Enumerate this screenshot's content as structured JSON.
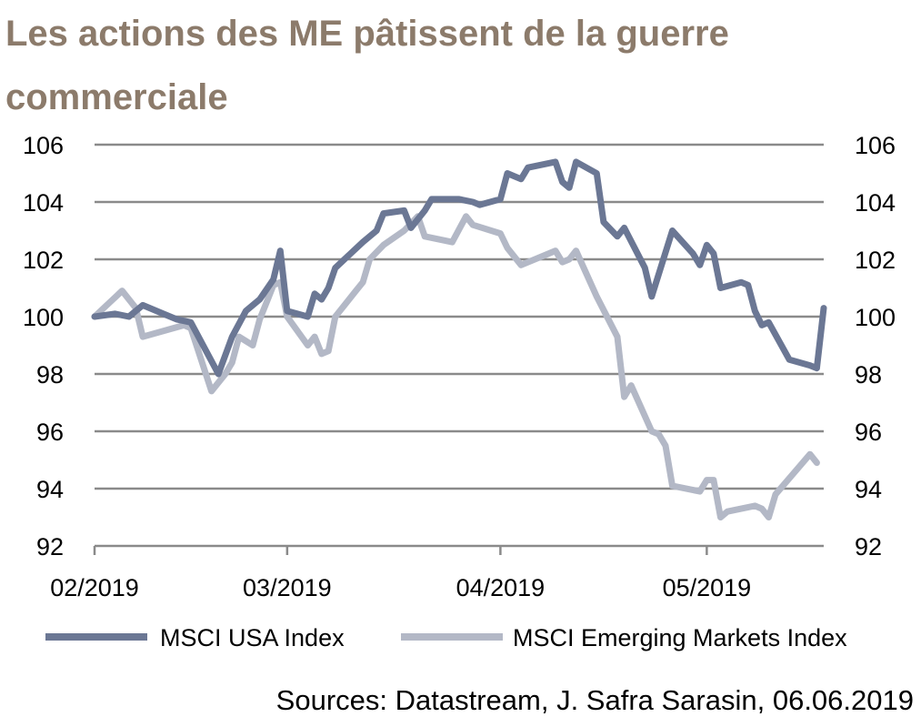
{
  "title": "Les actions des ME pâtissent de la guerre commerciale",
  "source": "Sources: Datastream, J. Safra Sarasin, 06.06.2019",
  "colors": {
    "title": "#8c7b6b",
    "usa": "#6b7794",
    "em": "#b3b8c6",
    "grid": "#8a8a8a"
  },
  "chart_data": {
    "type": "line",
    "x_labels": [
      "02/2019",
      "03/2019",
      "04/2019",
      "05/2019"
    ],
    "ylim": [
      92,
      106
    ],
    "y_ticks": [
      92,
      94,
      96,
      98,
      100,
      102,
      104,
      106
    ],
    "dual_y_axis": true,
    "grid": true,
    "legend_position": "bottom",
    "series": [
      {
        "name": "MSCI USA Index",
        "color": "#6b7794",
        "points": [
          [
            "2019-02-01",
            100.0
          ],
          [
            "2019-02-04",
            100.1
          ],
          [
            "2019-02-06",
            100.0
          ],
          [
            "2019-02-08",
            100.4
          ],
          [
            "2019-02-11",
            100.1
          ],
          [
            "2019-02-13",
            99.9
          ],
          [
            "2019-02-15",
            99.8
          ],
          [
            "2019-02-19",
            98.0
          ],
          [
            "2019-02-21",
            99.3
          ],
          [
            "2019-02-23",
            100.2
          ],
          [
            "2019-02-25",
            100.6
          ],
          [
            "2019-02-27",
            101.3
          ],
          [
            "2019-02-28",
            102.3
          ],
          [
            "2019-03-01",
            100.2
          ],
          [
            "2019-03-04",
            100.0
          ],
          [
            "2019-03-05",
            100.8
          ],
          [
            "2019-03-06",
            100.6
          ],
          [
            "2019-03-07",
            101.0
          ],
          [
            "2019-03-08",
            101.7
          ],
          [
            "2019-03-12",
            102.6
          ],
          [
            "2019-03-14",
            103.0
          ],
          [
            "2019-03-15",
            103.6
          ],
          [
            "2019-03-18",
            103.7
          ],
          [
            "2019-03-19",
            103.1
          ],
          [
            "2019-03-21",
            103.7
          ],
          [
            "2019-03-22",
            104.1
          ],
          [
            "2019-03-26",
            104.1
          ],
          [
            "2019-03-28",
            104.0
          ],
          [
            "2019-03-29",
            103.9
          ],
          [
            "2019-04-01",
            104.1
          ],
          [
            "2019-04-02",
            105.0
          ],
          [
            "2019-04-04",
            104.8
          ],
          [
            "2019-04-05",
            105.2
          ],
          [
            "2019-04-09",
            105.4
          ],
          [
            "2019-04-10",
            104.7
          ],
          [
            "2019-04-11",
            104.5
          ],
          [
            "2019-04-12",
            105.4
          ],
          [
            "2019-04-15",
            105.0
          ],
          [
            "2019-04-16",
            103.3
          ],
          [
            "2019-04-18",
            102.8
          ],
          [
            "2019-04-19",
            103.1
          ],
          [
            "2019-04-22",
            101.7
          ],
          [
            "2019-04-23",
            100.7
          ],
          [
            "2019-04-26",
            103.0
          ],
          [
            "2019-04-29",
            102.2
          ],
          [
            "2019-04-30",
            101.8
          ],
          [
            "2019-05-01",
            102.5
          ],
          [
            "2019-05-02",
            102.2
          ],
          [
            "2019-05-03",
            101.0
          ],
          [
            "2019-05-06",
            101.2
          ],
          [
            "2019-05-07",
            101.1
          ],
          [
            "2019-05-08",
            100.2
          ],
          [
            "2019-05-09",
            99.7
          ],
          [
            "2019-05-10",
            99.8
          ],
          [
            "2019-05-13",
            98.5
          ],
          [
            "2019-05-16",
            98.3
          ],
          [
            "2019-05-17",
            98.2
          ],
          [
            "2019-05-18",
            100.3
          ]
        ]
      },
      {
        "name": "MSCI Emerging Markets Index",
        "color": "#b3b8c6",
        "points": [
          [
            "2019-02-01",
            100.0
          ],
          [
            "2019-02-05",
            100.9
          ],
          [
            "2019-02-07",
            100.3
          ],
          [
            "2019-02-08",
            99.3
          ],
          [
            "2019-02-14",
            99.7
          ],
          [
            "2019-02-15",
            99.6
          ],
          [
            "2019-02-18",
            97.4
          ],
          [
            "2019-02-20",
            98.0
          ],
          [
            "2019-02-21",
            98.4
          ],
          [
            "2019-02-22",
            99.3
          ],
          [
            "2019-02-24",
            99.0
          ],
          [
            "2019-02-25",
            99.9
          ],
          [
            "2019-02-26",
            100.5
          ],
          [
            "2019-02-27",
            101.1
          ],
          [
            "2019-02-28",
            101.2
          ],
          [
            "2019-03-01",
            100.0
          ],
          [
            "2019-03-04",
            99.0
          ],
          [
            "2019-03-05",
            99.3
          ],
          [
            "2019-03-06",
            98.7
          ],
          [
            "2019-03-07",
            98.8
          ],
          [
            "2019-03-08",
            100.0
          ],
          [
            "2019-03-11",
            100.9
          ],
          [
            "2019-03-12",
            101.2
          ],
          [
            "2019-03-13",
            102.0
          ],
          [
            "2019-03-15",
            102.5
          ],
          [
            "2019-03-18",
            103.0
          ],
          [
            "2019-03-20",
            103.5
          ],
          [
            "2019-03-21",
            102.8
          ],
          [
            "2019-03-25",
            102.6
          ],
          [
            "2019-03-27",
            103.5
          ],
          [
            "2019-03-28",
            103.2
          ],
          [
            "2019-04-01",
            102.9
          ],
          [
            "2019-04-02",
            102.4
          ],
          [
            "2019-04-04",
            101.8
          ],
          [
            "2019-04-09",
            102.3
          ],
          [
            "2019-04-10",
            101.9
          ],
          [
            "2019-04-11",
            102.0
          ],
          [
            "2019-04-12",
            102.3
          ],
          [
            "2019-04-15",
            100.7
          ],
          [
            "2019-04-18",
            99.3
          ],
          [
            "2019-04-19",
            97.2
          ],
          [
            "2019-04-20",
            97.6
          ],
          [
            "2019-04-23",
            96.0
          ],
          [
            "2019-04-24",
            95.9
          ],
          [
            "2019-04-25",
            95.5
          ],
          [
            "2019-04-26",
            94.1
          ],
          [
            "2019-04-30",
            93.9
          ],
          [
            "2019-05-01",
            94.3
          ],
          [
            "2019-05-02",
            94.3
          ],
          [
            "2019-05-03",
            93.0
          ],
          [
            "2019-05-04",
            93.2
          ],
          [
            "2019-05-08",
            93.4
          ],
          [
            "2019-05-09",
            93.3
          ],
          [
            "2019-05-10",
            93.0
          ],
          [
            "2019-05-11",
            93.8
          ],
          [
            "2019-05-16",
            95.2
          ],
          [
            "2019-05-17",
            94.9
          ]
        ]
      }
    ]
  }
}
